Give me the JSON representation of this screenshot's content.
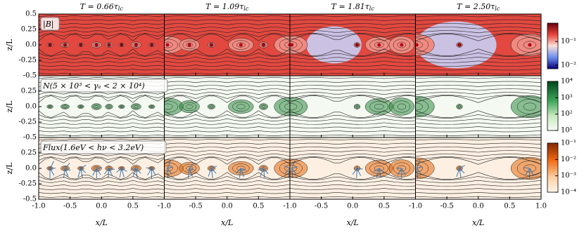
{
  "figure": {
    "columns": [
      {
        "main": "T = 0.66τ",
        "sub": "lc"
      },
      {
        "main": "T = 1.09τ",
        "sub": "lc"
      },
      {
        "main": "T = 1.81τ",
        "sub": "lc"
      },
      {
        "main": "T = 2.50τ",
        "sub": "lc"
      }
    ],
    "xlabel": "x/L",
    "ylabel": "z/L",
    "xlim": [
      -1,
      1
    ],
    "ylim": [
      -0.5,
      0.5
    ],
    "xticks": [
      {
        "value": -1,
        "label": "-1.0"
      },
      -0.5,
      {
        "value": 0,
        "label": "0.0"
      },
      0.5,
      {
        "value": 1,
        "label": "1.0"
      }
    ],
    "yticks": [
      -0.5,
      -0.25,
      {
        "value": 0,
        "label": "0.0"
      },
      0.25,
      0.5
    ],
    "rows": [
      {
        "label": "|B|",
        "log_scale": true,
        "clim": [
          0.007,
          0.6
        ],
        "cticks": [
          {
            "value": 0.1,
            "label": "10⁻¹"
          },
          {
            "value": 0.01,
            "label": "10⁻²"
          }
        ]
      },
      {
        "label": "N(5 × 10³ < γₑ < 2 × 10⁴)",
        "log_scale": true,
        "clim": [
          10,
          10000
        ],
        "cticks": [
          {
            "value": 10000,
            "label": "10⁴"
          },
          {
            "value": 1000,
            "label": "10³"
          },
          {
            "value": 100,
            "label": "10²"
          },
          {
            "value": 10,
            "label": "10¹"
          }
        ]
      },
      {
        "label": "Flux(1.6eV < hν < 3.2eV)",
        "log_scale": true,
        "clim": [
          0.0001,
          0.1
        ],
        "cticks": [
          {
            "value": 0.1,
            "label": "10⁻¹"
          },
          {
            "value": 0.01,
            "label": "10⁻²"
          },
          {
            "value": 0.001,
            "label": "10⁻³"
          },
          {
            "value": 0.0001,
            "label": "10⁻⁴"
          }
        ]
      }
    ]
  }
}
